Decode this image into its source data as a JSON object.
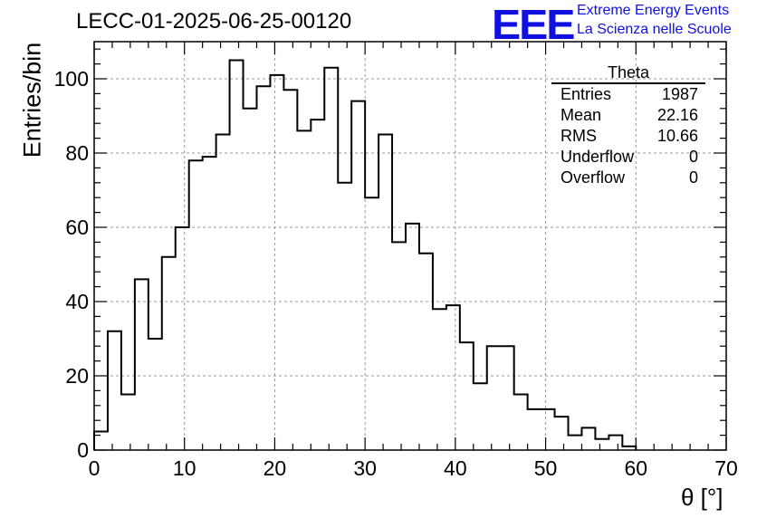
{
  "chart_data": {
    "type": "bar",
    "title": "LECC-01-2025-06-25-00120",
    "xlabel": "θ [°]",
    "ylabel": "Entries/bin",
    "xlim": [
      0,
      70
    ],
    "ylim": [
      0,
      110
    ],
    "grid": true,
    "bin_width": 1.5,
    "values": [
      5,
      32,
      15,
      46,
      30,
      52,
      60,
      78,
      79,
      85,
      105,
      92,
      98,
      101,
      97,
      86,
      89,
      103,
      72,
      94,
      68,
      85,
      56,
      61,
      53,
      38,
      39,
      29,
      18,
      28,
      28,
      15,
      11,
      11,
      9,
      4,
      6,
      3,
      4,
      1
    ],
    "xticks": [
      "0",
      "10",
      "20",
      "30",
      "40",
      "50",
      "60",
      "70"
    ],
    "yticks": [
      "0",
      "20",
      "40",
      "60",
      "80",
      "100"
    ]
  },
  "stats": {
    "name": "Theta",
    "rows": [
      {
        "label": "Entries",
        "value": "1987"
      },
      {
        "label": "Mean",
        "value": "22.16"
      },
      {
        "label": "RMS",
        "value": "10.66"
      },
      {
        "label": "Underflow",
        "value": "0"
      },
      {
        "label": "Overflow",
        "value": "0"
      }
    ]
  },
  "logo": {
    "mark": "EEE",
    "line1": "Extreme Energy Events",
    "line2": "La Scienza nelle Scuole",
    "color": "#1010e0"
  }
}
